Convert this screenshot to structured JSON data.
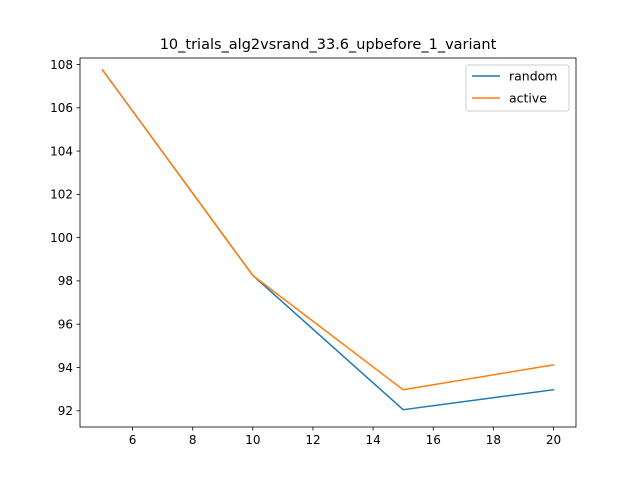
{
  "chart_data": {
    "type": "line",
    "title": "10_trials_alg2vsrand_33.6_upbefore_1_variant",
    "xlabel": "",
    "ylabel": "",
    "x": [
      5,
      10,
      15,
      20
    ],
    "xlim": [
      4.25,
      20.75
    ],
    "ylim": [
      91.25,
      108.3
    ],
    "xticks": [
      6,
      8,
      10,
      12,
      14,
      16,
      18,
      20
    ],
    "yticks": [
      92,
      94,
      96,
      98,
      100,
      102,
      104,
      106,
      108
    ],
    "series": [
      {
        "name": "random",
        "color": "#1f77b4",
        "values": [
          107.75,
          98.25,
          92.05,
          92.97
        ]
      },
      {
        "name": "active",
        "color": "#ff7f0e",
        "values": [
          107.75,
          98.25,
          92.97,
          94.12
        ]
      }
    ],
    "legend": "top-right",
    "grid": false
  }
}
